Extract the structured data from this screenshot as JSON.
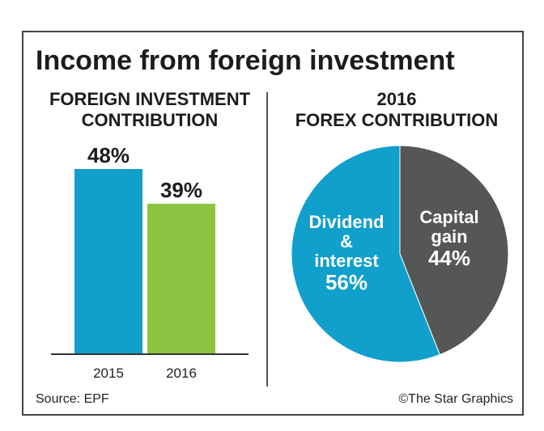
{
  "title": "Income from foreign investment",
  "footer": {
    "source": "Source: EPF",
    "credit": "©The Star Graphics"
  },
  "colors": {
    "blue": "#119fcb",
    "green": "#8dc343",
    "gray": "#555656"
  },
  "chart_data": [
    {
      "type": "bar",
      "title_lines": [
        "FOREIGN INVESTMENT",
        "CONTRIBUTION"
      ],
      "categories": [
        "2015",
        "2016"
      ],
      "values": [
        48,
        39
      ],
      "labels": [
        "48%",
        "39%"
      ],
      "colors": [
        "#119fcb",
        "#8dc343"
      ],
      "ylim": [
        0,
        48
      ]
    },
    {
      "type": "pie",
      "title_lines": [
        "2016",
        "FOREX CONTRIBUTION"
      ],
      "slices": [
        {
          "label_lines": [
            "Capital",
            "gain"
          ],
          "value": 44,
          "pct_label": "44%",
          "color": "#555656"
        },
        {
          "label_lines": [
            "Dividend",
            "&",
            "interest"
          ],
          "value": 56,
          "pct_label": "56%",
          "color": "#119fcb"
        }
      ]
    }
  ]
}
